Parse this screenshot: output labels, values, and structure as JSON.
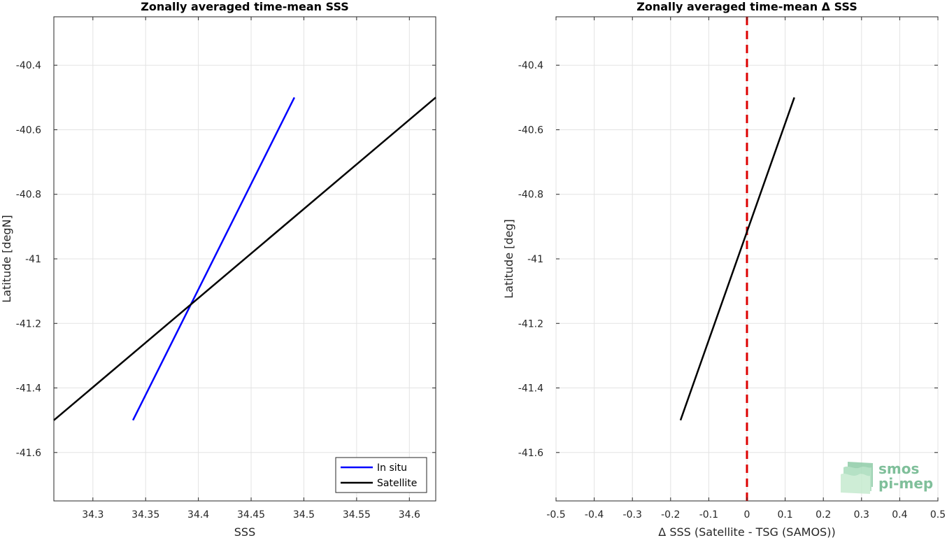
{
  "chart_data": [
    {
      "type": "line",
      "title": "Zonally averaged time-mean SSS",
      "xlabel": "SSS",
      "ylabel": "Latitude [degN]",
      "xlim": [
        34.263,
        34.625
      ],
      "ylim": [
        -41.75,
        -40.25
      ],
      "xticks": [
        34.3,
        34.35,
        34.4,
        34.45,
        34.5,
        34.55,
        34.6
      ],
      "xtick_labels": [
        "34.3",
        "34.35",
        "34.4",
        "34.45",
        "34.5",
        "34.55",
        "34.6"
      ],
      "yticks": [
        -40.4,
        -40.6,
        -40.8,
        -41,
        -41.2,
        -41.4,
        -41.6
      ],
      "ytick_labels": [
        "-40.4",
        "-40.6",
        "-40.8",
        "-41",
        "-41.2",
        "-41.4",
        "-41.6"
      ],
      "grid": true,
      "legend_position": "bottom-right",
      "series": [
        {
          "name": "In situ",
          "color": "#0000ff",
          "x": [
            34.338,
            34.491
          ],
          "y": [
            -41.5,
            -40.5
          ]
        },
        {
          "name": "Satellite",
          "color": "#000000",
          "x": [
            34.263,
            34.625
          ],
          "y": [
            -41.5,
            -40.5
          ]
        }
      ]
    },
    {
      "type": "line",
      "title": "Zonally averaged time-mean Δ SSS",
      "xlabel": "Δ SSS (Satellite - TSG (SAMOS))",
      "ylabel": "Latitude [deg]",
      "xlim": [
        -0.5,
        0.5
      ],
      "ylim": [
        -41.75,
        -40.25
      ],
      "xticks": [
        -0.5,
        -0.4,
        -0.3,
        -0.2,
        -0.1,
        0,
        0.1,
        0.2,
        0.3,
        0.4,
        0.5
      ],
      "xtick_labels": [
        "-0.5",
        "-0.4",
        "-0.3",
        "-0.2",
        "-0.1",
        "0",
        "0.1",
        "0.2",
        "0.3",
        "0.4",
        "0.5"
      ],
      "yticks": [
        -40.4,
        -40.6,
        -40.8,
        -41,
        -41.2,
        -41.4,
        -41.6
      ],
      "ytick_labels": [
        "-40.4",
        "-40.6",
        "-40.8",
        "-41",
        "-41.2",
        "-41.4",
        "-41.6"
      ],
      "grid": true,
      "reference_line": {
        "x": 0,
        "color": "#dd0000",
        "style": "dashed"
      },
      "series": [
        {
          "color": "#000000",
          "x": [
            -0.174,
            0.124
          ],
          "y": [
            -41.5,
            -40.5
          ]
        }
      ]
    }
  ],
  "logo": {
    "line1": "smos",
    "line2": "pi-mep",
    "color": "#7fbf9a"
  }
}
